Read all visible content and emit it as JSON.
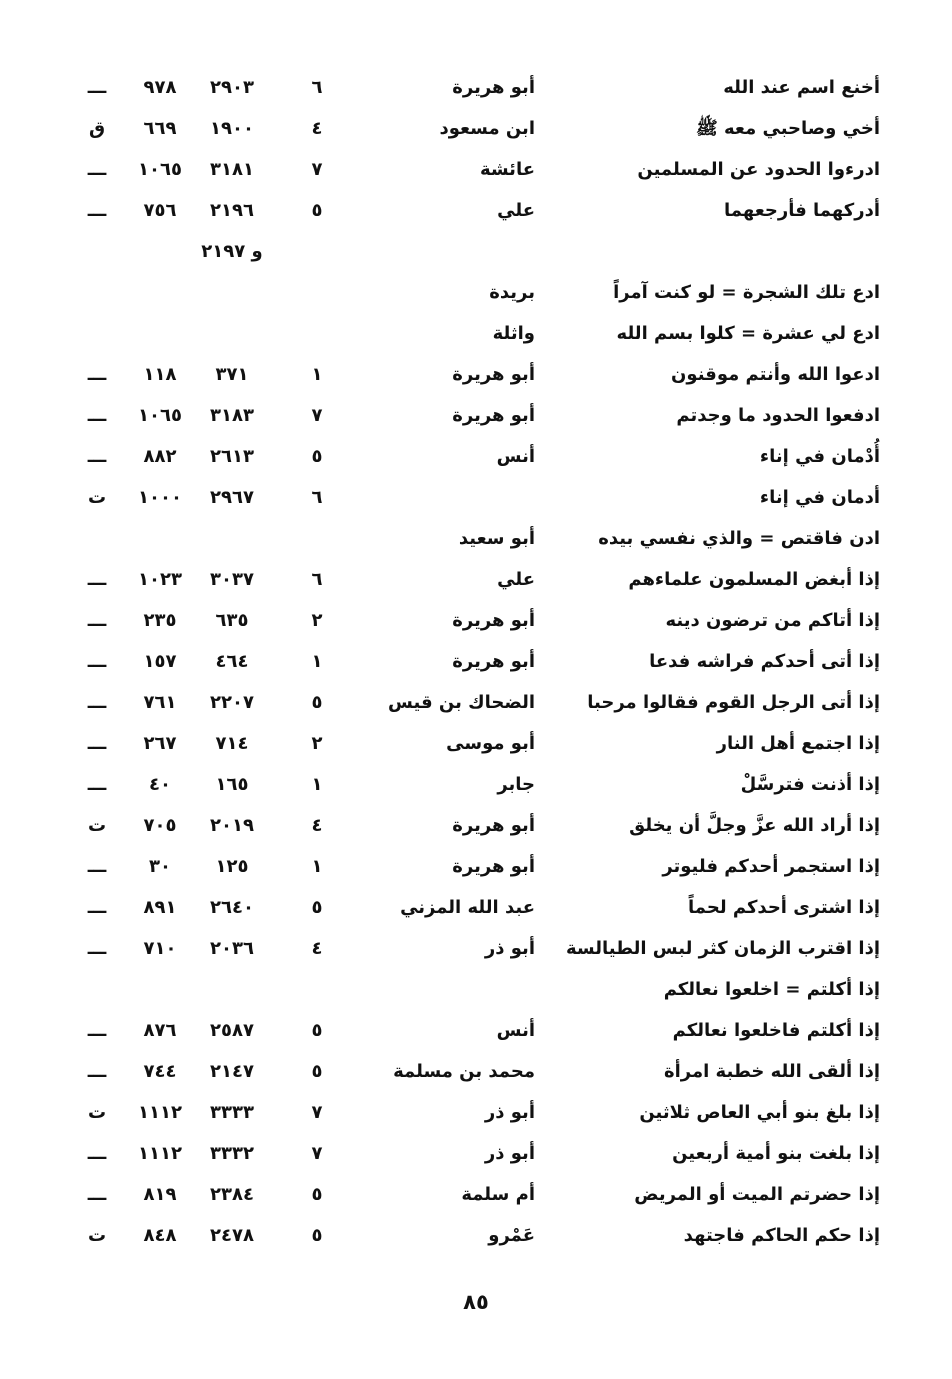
{
  "rows": [
    {
      "phrase": "أخنع اسم عند الله",
      "narrator": "أبو هريرة",
      "vol": "٦",
      "n1": "٢٩٠٣",
      "n2": "٩٧٨",
      "mark": "ـــ"
    },
    {
      "phrase": "أخي وصاحبي معه ﷺ",
      "narrator": "ابن مسعود",
      "vol": "٤",
      "n1": "١٩٠٠",
      "n2": "٦٦٩",
      "mark": "ق"
    },
    {
      "phrase": "ادرءوا الحدود عن المسلمين",
      "narrator": "عائشة",
      "vol": "٧",
      "n1": "٣١٨١",
      "n2": "١٠٦٥",
      "mark": "ـــ"
    },
    {
      "phrase": "أدركهما فأرجعهما",
      "narrator": "علي",
      "vol": "٥",
      "n1": "٢١٩٦",
      "n2": "٧٥٦",
      "mark": "ـــ"
    },
    {
      "phrase": "",
      "narrator": "",
      "vol": "",
      "n1": "و ٢١٩٧",
      "n2": "",
      "mark": ""
    },
    {
      "phrase": "ادع تلك الشجرة = لو كنت آمراً",
      "narrator": "بريدة",
      "vol": "",
      "n1": "",
      "n2": "",
      "mark": ""
    },
    {
      "phrase": "ادع لي عشرة = كلوا بسم الله",
      "narrator": "واثلة",
      "vol": "",
      "n1": "",
      "n2": "",
      "mark": ""
    },
    {
      "phrase": "ادعوا الله وأنتم موقنون",
      "narrator": "أبو هريرة",
      "vol": "١",
      "n1": "٣٧١",
      "n2": "١١٨",
      "mark": "ـــ"
    },
    {
      "phrase": "ادفعوا الحدود ما وجدتم",
      "narrator": "أبو هريرة",
      "vol": "٧",
      "n1": "٣١٨٣",
      "n2": "١٠٦٥",
      "mark": "ـــ"
    },
    {
      "phrase": "أُدْمان في إناء",
      "narrator": "أنس",
      "vol": "٥",
      "n1": "٢٦١٣",
      "n2": "٨٨٢",
      "mark": "ـــ"
    },
    {
      "phrase": "أدمان في إناء",
      "narrator": "",
      "vol": "٦",
      "n1": "٢٩٦٧",
      "n2": "١٠٠٠",
      "mark": "ت"
    },
    {
      "phrase": "ادن فاقتص = والذي نفسي بيده",
      "narrator": "أبو سعيد",
      "vol": "",
      "n1": "",
      "n2": "",
      "mark": ""
    },
    {
      "phrase": "إذا أبغض المسلمون علماءهم",
      "narrator": "علي",
      "vol": "٦",
      "n1": "٣٠٣٧",
      "n2": "١٠٢٣",
      "mark": "ـــ"
    },
    {
      "phrase": "إذا أتاكم من ترضون دينه",
      "narrator": "أبو هريرة",
      "vol": "٢",
      "n1": "٦٣٥",
      "n2": "٢٣٥",
      "mark": "ـــ"
    },
    {
      "phrase": "إذا أتى أحدكم فراشه فدعا",
      "narrator": "أبو هريرة",
      "vol": "١",
      "n1": "٤٦٤",
      "n2": "١٥٧",
      "mark": "ـــ"
    },
    {
      "phrase": "إذا أتى الرجل القوم فقالوا مرحبا",
      "narrator": "الضحاك بن قيس",
      "vol": "٥",
      "n1": "٢٢٠٧",
      "n2": "٧٦١",
      "mark": "ـــ"
    },
    {
      "phrase": "إذا اجتمع أهل النار",
      "narrator": "أبو موسى",
      "vol": "٢",
      "n1": "٧١٤",
      "n2": "٢٦٧",
      "mark": "ـــ"
    },
    {
      "phrase": "إذا أذنت فترسَّلْ",
      "narrator": "جابر",
      "vol": "١",
      "n1": "١٦٥",
      "n2": "٤٠",
      "mark": "ـــ"
    },
    {
      "phrase": "إذا أراد الله عزَّ وجلَّ أن يخلق",
      "narrator": "أبو هريرة",
      "vol": "٤",
      "n1": "٢٠١٩",
      "n2": "٧٠٥",
      "mark": "ت"
    },
    {
      "phrase": "إذا استجمر أحدكم فليوتر",
      "narrator": "أبو هريرة",
      "vol": "١",
      "n1": "١٢٥",
      "n2": "٣٠",
      "mark": "ـــ"
    },
    {
      "phrase": "إذا اشترى أحدكم لحماً",
      "narrator": "عبد الله المزني",
      "vol": "٥",
      "n1": "٢٦٤٠",
      "n2": "٨٩١",
      "mark": "ـــ"
    },
    {
      "phrase": "إذا اقترب الزمان كثر لبس الطيالسة",
      "narrator": "أبو ذر",
      "vol": "٤",
      "n1": "٢٠٣٦",
      "n2": "٧١٠",
      "mark": "ـــ"
    },
    {
      "phrase": "إذا أكلتم = اخلعوا نعالكم",
      "narrator": "",
      "vol": "",
      "n1": "",
      "n2": "",
      "mark": ""
    },
    {
      "phrase": "إذا أكلتم فاخلعوا نعالكم",
      "narrator": "أنس",
      "vol": "٥",
      "n1": "٢٥٨٧",
      "n2": "٨٧٦",
      "mark": "ـــ"
    },
    {
      "phrase": "إذا ألقى الله خطبة امرأة",
      "narrator": "محمد بن مسلمة",
      "vol": "٥",
      "n1": "٢١٤٧",
      "n2": "٧٤٤",
      "mark": "ـــ"
    },
    {
      "phrase": "إذا بلغ بنو أبي العاص ثلاثين",
      "narrator": "أبو ذر",
      "vol": "٧",
      "n1": "٣٣٣٣",
      "n2": "١١١٢",
      "mark": "ت"
    },
    {
      "phrase": "إذا بلغت بنو أمية أربعين",
      "narrator": "أبو ذر",
      "vol": "٧",
      "n1": "٣٣٣٢",
      "n2": "١١١٢",
      "mark": "ـــ"
    },
    {
      "phrase": "إذا حضرتم الميت أو المريض",
      "narrator": "أم سلمة",
      "vol": "٥",
      "n1": "٢٣٨٤",
      "n2": "٨١٩",
      "mark": "ـــ"
    },
    {
      "phrase": "إذا حكم الحاكم فاجتهد",
      "narrator": "عَمْرو",
      "vol": "٥",
      "n1": "٢٤٧٨",
      "n2": "٨٤٨",
      "mark": "ت"
    }
  ],
  "page_number": "٨٥"
}
